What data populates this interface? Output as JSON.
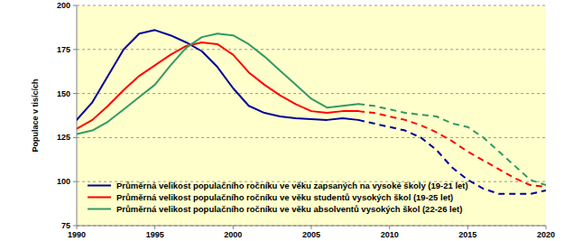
{
  "chart_data": {
    "type": "line",
    "y_label": "Populace v tisících",
    "x": [
      1990,
      1991,
      1992,
      1993,
      1994,
      1995,
      1996,
      1997,
      1998,
      1999,
      2000,
      2001,
      2002,
      2003,
      2004,
      2005,
      2006,
      2007,
      2008,
      2009,
      2010,
      2011,
      2012,
      2013,
      2014,
      2015,
      2016,
      2017,
      2018,
      2019,
      2020
    ],
    "xlim": [
      1990,
      2020
    ],
    "xticks": [
      1990,
      1995,
      2000,
      2005,
      2010,
      2015,
      2020
    ],
    "ylim": [
      75,
      200
    ],
    "yticks": [
      75,
      100,
      125,
      150,
      175,
      200
    ],
    "grid": true,
    "legend": "lower left",
    "series": [
      {
        "name": "Průměrná velikost populačního ročníku ve věku zapsaných na vysoké školy (19-21 let)",
        "color": "#000099",
        "line_style": "solid",
        "values": [
          135,
          145,
          160,
          175,
          184,
          186,
          183,
          179,
          174,
          165,
          153,
          143,
          139,
          137,
          136,
          135.5,
          135,
          136,
          135,
          null,
          null,
          null,
          null,
          null,
          null,
          null,
          null,
          null,
          null,
          null,
          null
        ]
      },
      {
        "name": "Průměrná velikost populačního ročníku ve věku studentů vysokých škol (19-25 let)",
        "color": "#ff0000",
        "line_style": "solid",
        "values": [
          130,
          135,
          143,
          152,
          160,
          166,
          172,
          177,
          179,
          178,
          172,
          162,
          155,
          149,
          144,
          140,
          139,
          140,
          140,
          null,
          null,
          null,
          null,
          null,
          null,
          null,
          null,
          null,
          null,
          null,
          null
        ]
      },
      {
        "name": "Průměrná velikost populačního ročníku ve věku absolventů vysokých škol (22-26 let)",
        "color": "#339966",
        "line_style": "solid",
        "values": [
          127,
          129,
          134,
          141,
          148,
          155,
          166,
          176,
          182,
          184,
          183,
          178,
          171,
          163,
          155,
          147,
          142,
          143,
          144,
          null,
          null,
          null,
          null,
          null,
          null,
          null,
          null,
          null,
          null,
          null,
          null
        ]
      },
      {
        "color": "#000099",
        "line_style": "dashed",
        "values": [
          null,
          null,
          null,
          null,
          null,
          null,
          null,
          null,
          null,
          null,
          null,
          null,
          null,
          null,
          null,
          null,
          null,
          null,
          135,
          133,
          131,
          129,
          125,
          118,
          108,
          101,
          96,
          93,
          93,
          93,
          95
        ]
      },
      {
        "color": "#ff0000",
        "line_style": "dashed",
        "values": [
          null,
          null,
          null,
          null,
          null,
          null,
          null,
          null,
          null,
          null,
          null,
          null,
          null,
          null,
          null,
          null,
          null,
          null,
          140,
          139,
          137,
          135,
          132,
          128,
          123,
          117,
          112,
          107,
          102,
          98,
          97
        ]
      },
      {
        "color": "#339966",
        "line_style": "dashed",
        "values": [
          null,
          null,
          null,
          null,
          null,
          null,
          null,
          null,
          null,
          null,
          null,
          null,
          null,
          null,
          null,
          null,
          null,
          null,
          144,
          143,
          141,
          139,
          138,
          137,
          133,
          131,
          125,
          117,
          109,
          101,
          98
        ]
      }
    ]
  }
}
